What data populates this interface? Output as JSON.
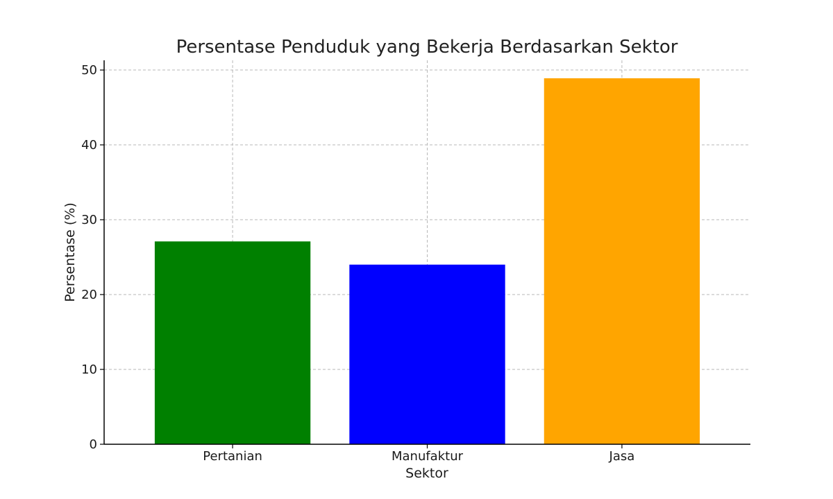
{
  "chart_data": {
    "type": "bar",
    "title": "Persentase Penduduk yang Bekerja Berdasarkan Sektor",
    "xlabel": "Sektor",
    "ylabel": "Persentase (%)",
    "categories": [
      "Pertanian",
      "Manufaktur",
      "Jasa"
    ],
    "values": [
      27.1,
      24,
      48.9
    ],
    "colors": [
      "#008000",
      "#0000ff",
      "#ffa500"
    ],
    "ylim": [
      0,
      51.3
    ],
    "yticks": [
      0,
      10,
      20,
      30,
      40,
      50
    ],
    "grid": true,
    "legend": "none"
  }
}
